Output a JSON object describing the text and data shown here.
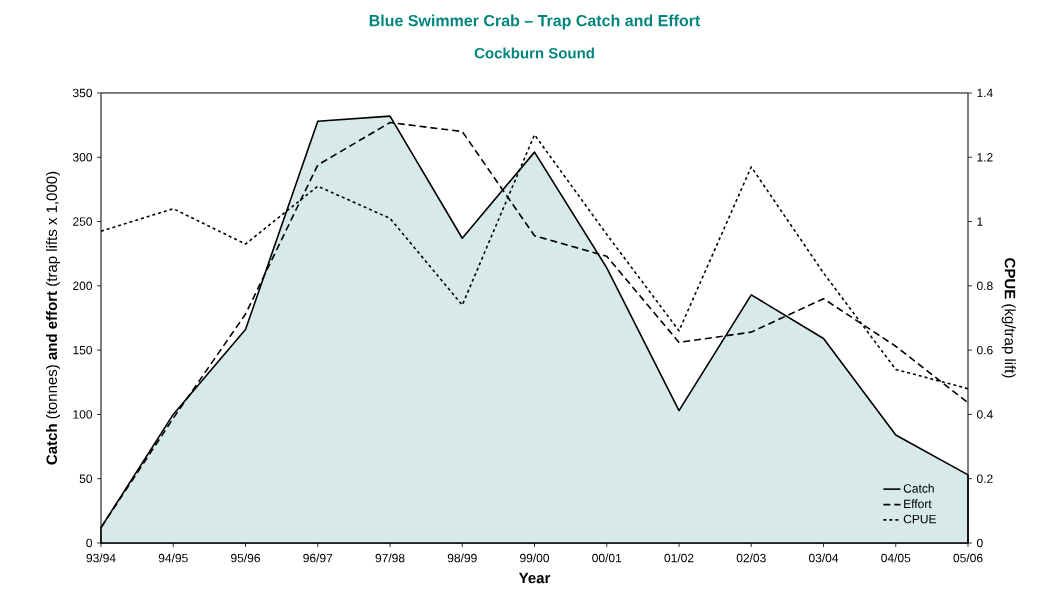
{
  "chart_data": {
    "type": "line",
    "title": "Blue Swimmer Crab – Trap Catch and Effort",
    "subtitle": "Cockburn Sound",
    "xlabel": "Year",
    "ylabel": "**Catch** (tonnes) **and effort** (trap lifts x 1,000)",
    "y2label": "**CPUE** (kg/trap lift)",
    "categories": [
      "93/94",
      "94/95",
      "95/96",
      "96/97",
      "97/98",
      "98/99",
      "99/00",
      "00/01",
      "01/02",
      "02/03",
      "03/04",
      "04/05",
      "05/06"
    ],
    "series": [
      {
        "name": "Catch",
        "type": "area",
        "color": "#d7e9e8",
        "line_style": "solid",
        "values": [
          12,
          100,
          166,
          328,
          332,
          237,
          304,
          214,
          103,
          193,
          159,
          84,
          53
        ]
      },
      {
        "name": "Effort",
        "color": "#000000",
        "line_style": "dashed",
        "values": [
          12,
          97,
          178,
          294,
          327,
          320,
          239,
          223,
          156,
          164,
          190,
          153,
          109
        ]
      },
      {
        "name": "CPUE",
        "type": "line",
        "color": "#000000",
        "line_style": "dotted",
        "axis": "y2",
        "values": [
          0.97,
          1.04,
          0.93,
          1.11,
          1.01,
          0.74,
          1.27,
          0.96,
          0.66,
          1.17,
          0.84,
          0.54,
          0.48
        ]
      }
    ],
    "ylim": [
      0,
      350
    ],
    "yticks": [
      0,
      50,
      100,
      150,
      200,
      250,
      300,
      350
    ],
    "y2lim": [
      0,
      1.4
    ],
    "y2ticks": [
      0,
      0.2,
      0.4,
      0.6,
      0.8,
      1,
      1.2,
      1.4
    ],
    "legend": "bottom right",
    "grid": false
  }
}
